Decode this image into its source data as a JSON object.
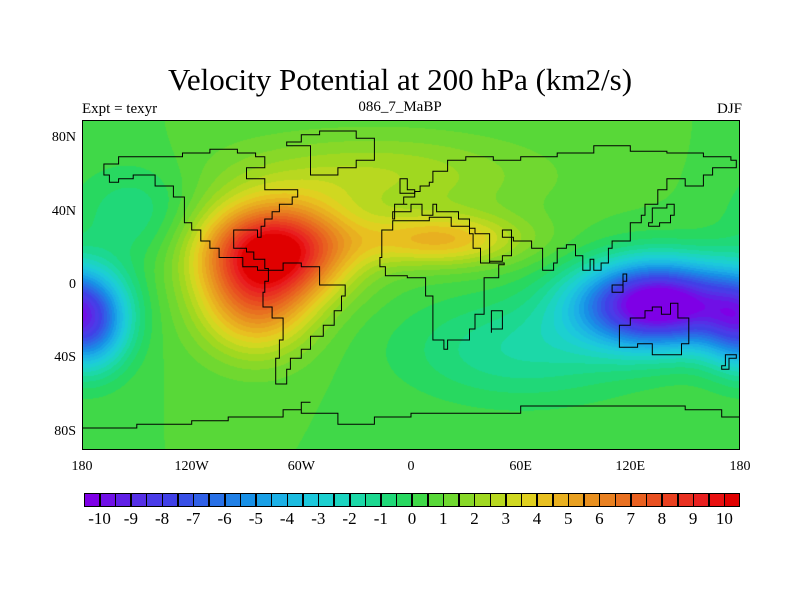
{
  "title": "Velocity Potential at 200 hPa (km2/s)",
  "left_string": "Expt = texyr",
  "center_string": "086_7_MaBP",
  "right_string": "DJF",
  "map": {
    "type": "filled-contour",
    "variable": "velocity_potential",
    "level_hPa": 200,
    "units": "km2/s",
    "lon_range": [
      -180,
      180
    ],
    "lat_range": [
      -90,
      90
    ],
    "field_features": [
      {
        "lon": -75,
        "lat": 20,
        "amp": 9.5,
        "sx": 28,
        "sy": 18
      },
      {
        "lon": -85,
        "lat": -10,
        "amp": 5.0,
        "sx": 22,
        "sy": 20
      },
      {
        "lon": 15,
        "lat": 25,
        "amp": 4.0,
        "sx": 32,
        "sy": 10
      },
      {
        "lon": -20,
        "lat": 60,
        "amp": 2.0,
        "sx": 60,
        "sy": 16
      },
      {
        "lon": 135,
        "lat": -10,
        "amp": -12.0,
        "sx": 30,
        "sy": 16
      },
      {
        "lon": -175,
        "lat": -20,
        "amp": -4.0,
        "sx": 15,
        "sy": 18
      },
      {
        "lon": 180,
        "lat": -20,
        "amp": -3.0,
        "sx": 15,
        "sy": 18
      },
      {
        "lon": 60,
        "lat": -35,
        "amp": -2.0,
        "sx": 45,
        "sy": 20
      },
      {
        "lon": -150,
        "lat": 40,
        "amp": -1.5,
        "sx": 25,
        "sy": 20
      }
    ]
  },
  "axes": {
    "y_ticks": [
      "80N",
      "40N",
      "0",
      "40S",
      "80S"
    ],
    "y_values": [
      80,
      40,
      0,
      -40,
      -80
    ],
    "x_ticks": [
      "180",
      "120W",
      "60W",
      "0",
      "60E",
      "120E",
      "180"
    ],
    "x_values": [
      -180,
      -120,
      -60,
      0,
      60,
      120,
      180
    ]
  },
  "colorbar": {
    "labels": [
      "-10",
      "-9",
      "-8",
      "-7",
      "-6",
      "-5",
      "-4",
      "-3",
      "-2",
      "-1",
      "0",
      "1",
      "2",
      "3",
      "4",
      "5",
      "6",
      "7",
      "8",
      "9",
      "10"
    ],
    "levels": [
      -10,
      -9.5,
      -9,
      -8.5,
      -8,
      -7.5,
      -7,
      -6.5,
      -6,
      -5.5,
      -5,
      -4.5,
      -4,
      -3.5,
      -3,
      -2.5,
      -2,
      -1.5,
      -1,
      -0.5,
      0,
      0.5,
      1,
      1.5,
      2,
      2.5,
      3,
      3.5,
      4,
      4.5,
      5,
      5.5,
      6,
      6.5,
      7,
      7.5,
      8,
      8.5,
      9,
      9.5,
      10
    ],
    "colors": [
      "#7e00e6",
      "#7010e6",
      "#6020e6",
      "#5530e6",
      "#4a3ce8",
      "#4040e6",
      "#3850e6",
      "#3060e6",
      "#2870e6",
      "#2080e6",
      "#1890e6",
      "#1aa0e6",
      "#1cb0e6",
      "#1cbce0",
      "#1cc8dc",
      "#1cd0d0",
      "#1cd4c0",
      "#1cd8a8",
      "#1cd890",
      "#20d878",
      "#28d860",
      "#40d848",
      "#58d838",
      "#70d830",
      "#88d828",
      "#a0d820",
      "#b8d820",
      "#d0d820",
      "#e0d020",
      "#e8c020",
      "#e8b020",
      "#e8a020",
      "#e89020",
      "#e88020",
      "#e87020",
      "#e86020",
      "#e85020",
      "#e84020",
      "#e83020",
      "#e82020",
      "#e81010",
      "#e00000"
    ]
  }
}
